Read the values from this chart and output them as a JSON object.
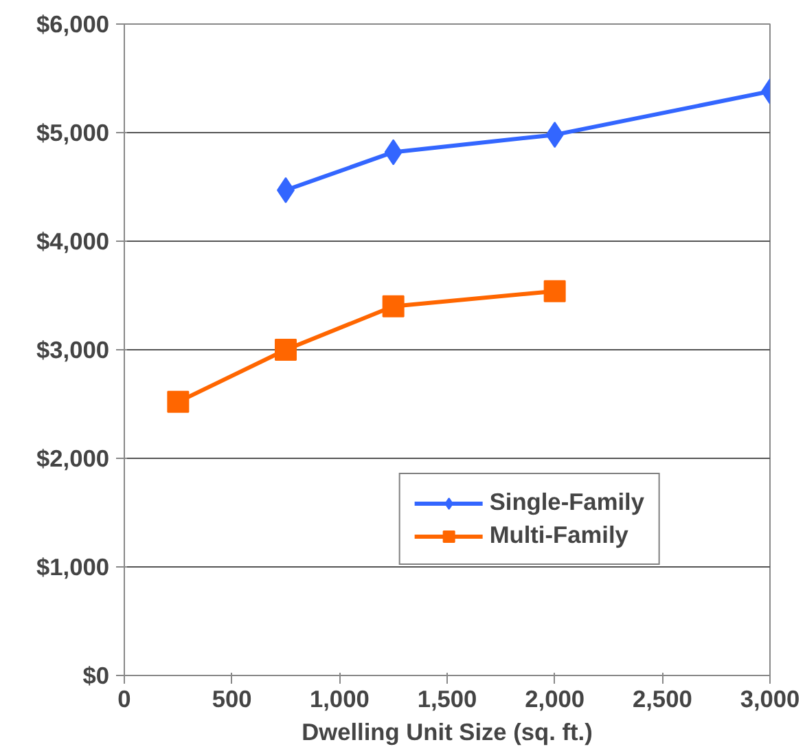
{
  "chart_data": {
    "type": "line",
    "xlabel": "Dwelling Unit Size (sq. ft.)",
    "xlim": [
      0,
      3000
    ],
    "xticks": [
      0,
      500,
      {
        "value": 1000,
        "label": "1,000"
      },
      {
        "value": 1500,
        "label": "1,500"
      },
      {
        "value": 2000,
        "label": "2,000"
      },
      {
        "value": 2500,
        "label": "2,500"
      },
      {
        "value": 3000,
        "label": "3,000"
      }
    ],
    "ylim": [
      0,
      6000
    ],
    "yticks": [
      {
        "value": 0,
        "label": "$0"
      },
      {
        "value": 1000,
        "label": "$1,000"
      },
      {
        "value": 2000,
        "label": "$2,000"
      },
      {
        "value": 3000,
        "label": "$3,000"
      },
      {
        "value": 4000,
        "label": "$4,000"
      },
      {
        "value": 5000,
        "label": "$5,000"
      },
      {
        "value": 6000,
        "label": "$6,000"
      }
    ],
    "grid": "y",
    "legend": "bottom right",
    "series": [
      {
        "name": "Single-Family",
        "color": "#3366ff",
        "marker": "diamond",
        "x": [
          750,
          1250,
          2000,
          3000
        ],
        "values": [
          4470,
          4820,
          4980,
          5380
        ]
      },
      {
        "name": "Multi-Family",
        "color": "#ff6600",
        "marker": "square",
        "x": [
          250,
          750,
          1250,
          2000
        ],
        "values": [
          2520,
          3000,
          3400,
          3540
        ]
      }
    ]
  }
}
